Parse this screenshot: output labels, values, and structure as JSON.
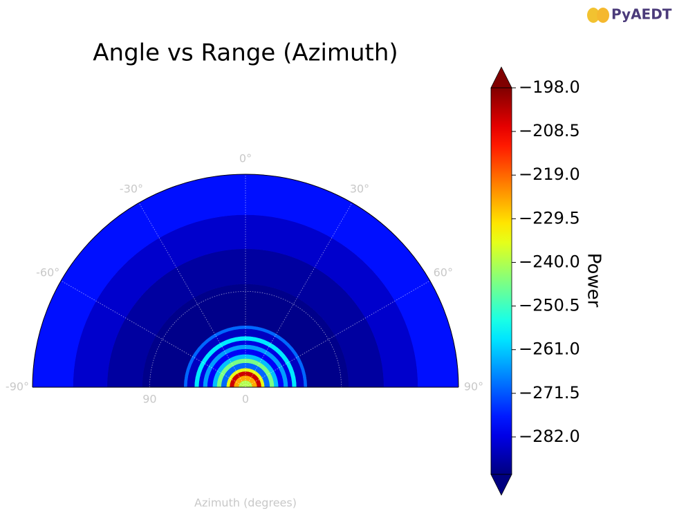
{
  "chart_data": {
    "type": "polar_heatmap",
    "title": "Angle vs Range (Azimuth)",
    "xlabel": "Azimuth (degrees)",
    "colorbar_label": "Power",
    "logo_text": "PyAEDT",
    "colormap": "jet",
    "r_bins": [
      0,
      6.5,
      11,
      15,
      18,
      23,
      27,
      31,
      36,
      40,
      44,
      48,
      55,
      58,
      97,
      130,
      162,
      200
    ],
    "power": [
      -240,
      -225,
      -205,
      -235,
      -270,
      -245,
      -262,
      -280,
      -265,
      -282,
      -258,
      -285,
      -270,
      -290,
      -288,
      -284,
      -278
    ],
    "rlim": [
      0,
      200
    ],
    "rticks": [
      0,
      90
    ],
    "thetalim": [
      -90,
      90
    ],
    "thetaticks": [
      {
        "value": -90,
        "label": "-90°"
      },
      {
        "value": -60,
        "label": "-60°"
      },
      {
        "value": -30,
        "label": "-30°"
      },
      {
        "value": 0,
        "label": "0°"
      },
      {
        "value": 30,
        "label": "30°"
      },
      {
        "value": 60,
        "label": "60°"
      },
      {
        "value": 90,
        "label": "90°"
      }
    ],
    "clim": [
      -291,
      -198
    ],
    "cticks": [
      {
        "value": -198,
        "label": "−198.0"
      },
      {
        "value": -208.5,
        "label": "−208.5"
      },
      {
        "value": -219,
        "label": "−219.0"
      },
      {
        "value": -229.5,
        "label": "−229.5"
      },
      {
        "value": -240,
        "label": "−240.0"
      },
      {
        "value": -250.5,
        "label": "−250.5"
      },
      {
        "value": -261,
        "label": "−261.0"
      },
      {
        "value": -271.5,
        "label": "−271.5"
      },
      {
        "value": -282,
        "label": "−282.0"
      }
    ],
    "grid": true
  }
}
